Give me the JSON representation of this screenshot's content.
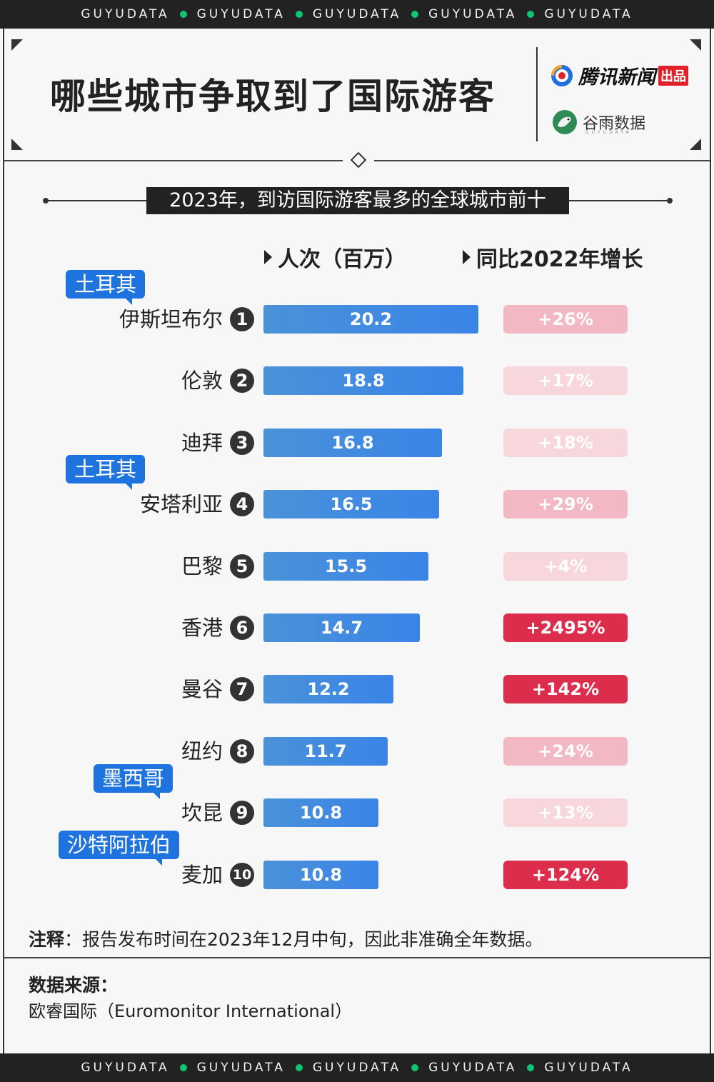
{
  "banner": [
    "GUYUDATA",
    "GUYUDATA",
    "GUYUDATA",
    "GUYUDATA",
    "GUYUDATA"
  ],
  "header": {
    "title": "哪些城市争取到了国际游客",
    "logo_tencent": "腾讯新闻",
    "logo_tencent_tag": "出品",
    "logo_guyu": "谷雨数据",
    "logo_guyu_sub": "GUYUDATA"
  },
  "colors": {
    "bar": "#3a84e8",
    "country_tag": "#1f73df",
    "growth_low": "#f7d6dc",
    "growth_mid": "#f2b8c3",
    "growth_high": "#dc2e4c",
    "accent_green": "#10c472"
  },
  "chart_data": {
    "type": "bar",
    "title": "2023年，到访国际游客最多的全球城市前十",
    "col_visitors": "人次（百万）",
    "col_growth": "同比2022年增长",
    "categories": [
      "伊斯坦布尔",
      "伦敦",
      "迪拜",
      "安塔利亚",
      "巴黎",
      "香港",
      "曼谷",
      "纽约",
      "坎昆",
      "麦加"
    ],
    "ranks": [
      "1",
      "2",
      "3",
      "4",
      "5",
      "6",
      "7",
      "8",
      "9",
      "10"
    ],
    "series": [
      {
        "name": "人次（百万）",
        "values": [
          20.2,
          18.8,
          16.8,
          16.5,
          15.5,
          14.7,
          12.2,
          11.7,
          10.8,
          10.8
        ]
      }
    ],
    "growth_labels": [
      "+26%",
      "+17%",
      "+18%",
      "+29%",
      "+4%",
      "+2495%",
      "+142%",
      "+24%",
      "+13%",
      "+124%"
    ],
    "growth_values": [
      26,
      17,
      18,
      29,
      4,
      2495,
      142,
      24,
      13,
      124
    ],
    "country_tags": [
      {
        "row": 0,
        "label": "土耳其"
      },
      {
        "row": 3,
        "label": "土耳其"
      },
      {
        "row": 8,
        "label": "墨西哥"
      },
      {
        "row": 9,
        "label": "沙特阿拉伯"
      }
    ]
  },
  "footer": {
    "note_label": "注释",
    "note_text": "：报告发布时间在2023年12月中旬，因此非准确全年数据。",
    "source_title": "数据来源：",
    "source_body": "欧睿国际（Euromonitor International）"
  }
}
